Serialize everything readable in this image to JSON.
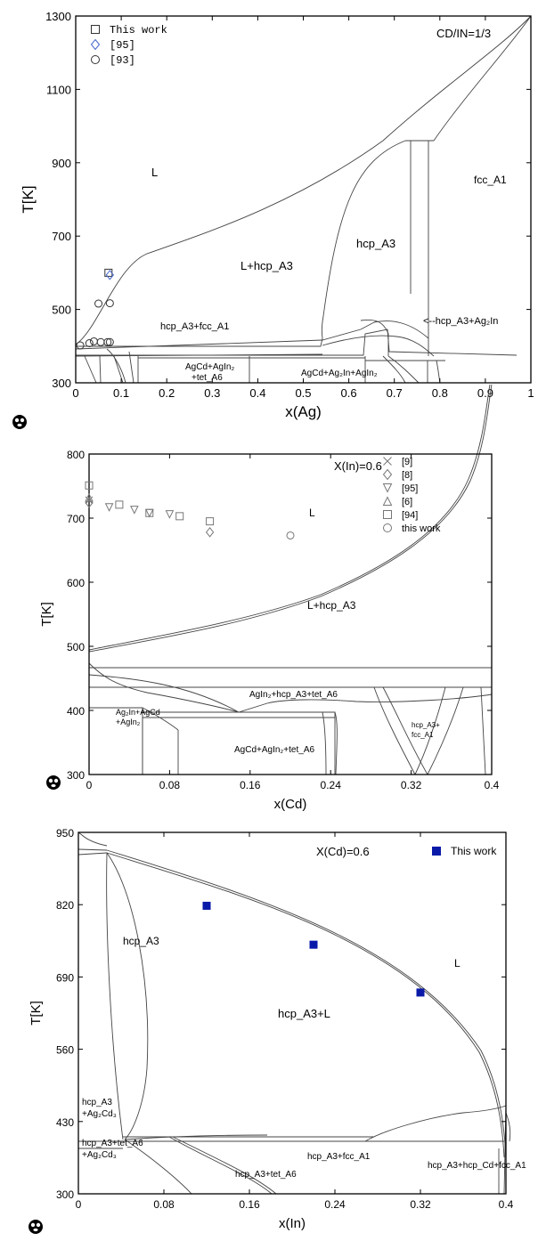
{
  "chart_data": [
    {
      "type": "scatter",
      "xlabel": "x(Ag)",
      "ylabel": "T[K]",
      "xlim": [
        0,
        1
      ],
      "ylim": [
        300,
        1300
      ],
      "x_ticks": [
        "0",
        "0.1",
        "0.2",
        "0.3",
        "0.4",
        "0.5",
        "0.6",
        "0.7",
        "0.8",
        "0.9",
        "1"
      ],
      "y_ticks": [
        "300",
        "500",
        "700",
        "900",
        "1100",
        "1300"
      ],
      "annotation": "CD/IN=1/3",
      "grid": false,
      "legend_position": "top-left",
      "region_labels": [
        "L",
        "fcc_A1",
        "hcp_A3",
        "L+hcp_A3",
        "hcp_A3+fcc_A1",
        "<--hcp_A3+Ag₂In",
        "AgCd+AgIn₂",
        "+tet_A6",
        "AgCd+Ag₂In+AgIn₂"
      ],
      "series": [
        {
          "name": "This work",
          "marker": "square",
          "color": "#333333",
          "x": [
            0.072
          ],
          "y": [
            600
          ]
        },
        {
          "name": "[95]",
          "marker": "diamond",
          "color": "#4466cc",
          "x": [
            0.075
          ],
          "y": [
            594
          ]
        },
        {
          "name": "[93]",
          "marker": "circle",
          "color": "#333333",
          "x": [
            0.01,
            0.03,
            0.04,
            0.055,
            0.07,
            0.075,
            0.05,
            0.075
          ],
          "y": [
            402,
            408,
            413,
            411,
            411,
            411,
            516,
            517
          ]
        }
      ]
    },
    {
      "type": "scatter",
      "xlabel": "x(Cd)",
      "ylabel": "T[K]",
      "xlim": [
        0,
        0.4
      ],
      "ylim": [
        300,
        800
      ],
      "x_ticks": [
        "0",
        "0.08",
        "0.16",
        "0.24",
        "0.32",
        "0.4"
      ],
      "y_ticks": [
        "300",
        "400",
        "500",
        "600",
        "700",
        "800"
      ],
      "annotation": "X(In)=0.6",
      "grid": false,
      "legend_position": "top-right",
      "region_labels": [
        "L",
        "L+hcp_A3",
        "AgIn₂+hcp_A3+tet_A6",
        "Ag₂In+AgCd",
        "+AgIn₂",
        "AgCd+AgIn₂+tet_A6",
        "hcp_A3+",
        "fcc_A1"
      ],
      "series": [
        {
          "name": "[9]",
          "marker": "x",
          "color": "#777777",
          "x": [
            0.0
          ],
          "y": [
            728
          ]
        },
        {
          "name": "[8]",
          "marker": "diamond",
          "color": "#777777",
          "x": [
            0.0,
            0.12
          ],
          "y": [
            724,
            678
          ]
        },
        {
          "name": "[95]",
          "marker": "triangle-down",
          "color": "#777777",
          "x": [
            0.02,
            0.045,
            0.06,
            0.08
          ],
          "y": [
            717,
            713,
            708,
            706
          ]
        },
        {
          "name": "[6]",
          "marker": "triangle-up",
          "color": "#777777",
          "x": [
            0.0
          ],
          "y": [
            732
          ]
        },
        {
          "name": "[94]",
          "marker": "square",
          "color": "#777777",
          "x": [
            0.0,
            0.03,
            0.06,
            0.09,
            0.12
          ],
          "y": [
            751,
            721,
            708,
            703,
            695
          ]
        },
        {
          "name": "this work",
          "marker": "circle",
          "color": "#777777",
          "x": [
            0.2
          ],
          "y": [
            673
          ]
        }
      ]
    },
    {
      "type": "scatter",
      "xlabel": "x(In)",
      "ylabel": "T[K]",
      "xlim": [
        0,
        0.4
      ],
      "ylim": [
        300,
        950
      ],
      "x_ticks": [
        "0",
        "0.08",
        "0.16",
        "0.24",
        "0.32",
        "0.4"
      ],
      "y_ticks": [
        "300",
        "430",
        "560",
        "690",
        "820",
        "950"
      ],
      "annotation": "X(Cd)=0.6",
      "grid": false,
      "legend_position": "top-right",
      "region_labels": [
        "hcp_A3",
        "hcp_A3+L",
        "L",
        "hcp_A3",
        "+Ag₂Cd₃",
        "hcp_A3+tet_A6",
        "+Ag₂Cd₃",
        "hcp_A3+tet_A6",
        "hcp_A3+fcc_A1",
        "hcp_A3+hcp_Cd+fcc_A1"
      ],
      "series": [
        {
          "name": "This work",
          "marker": "filled-square",
          "color": "#0a1aa8",
          "x": [
            0.12,
            0.22,
            0.32
          ],
          "y": [
            818,
            748,
            662
          ]
        }
      ]
    }
  ]
}
